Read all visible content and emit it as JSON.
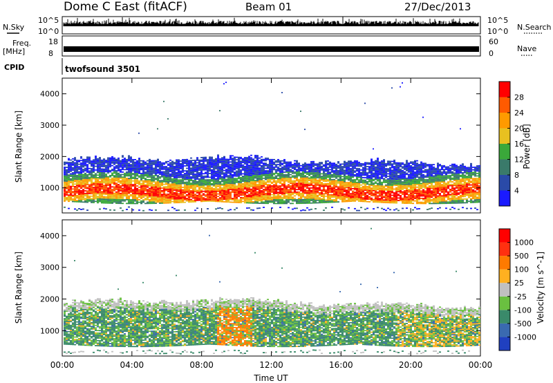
{
  "header": {
    "title": "Dome C East (fitACF)",
    "beam": "Beam 01",
    "date": "27/Dec/2013"
  },
  "params": {
    "nsky_label": "N.Sky",
    "nsearch_label": "N.Search",
    "nsky_top": "10^5",
    "nsky_bottom": "10^0",
    "nsearch_top": "10^5",
    "nsearch_bottom": "10^0",
    "freq_label_1": "Freq.",
    "freq_label_2": "[MHz]",
    "freq_top": "18",
    "freq_bottom": "8",
    "nave_label": "Nave",
    "nave_top": "60",
    "nave_bottom": "0",
    "cpid_label": "CPID",
    "cpid_value": "twofsound 3501"
  },
  "colors": {
    "power": [
      "#1a1aff",
      "#2a4aa8",
      "#3a7a6a",
      "#3aa83a",
      "#e8c020",
      "#ff9a00",
      "#ff5a00",
      "#ff0000"
    ],
    "velocity": [
      "#2040c0",
      "#3a6ab0",
      "#3a8a6a",
      "#6ac040",
      "#c0c0c0",
      "#ffb020",
      "#ff7a00",
      "#ff3010",
      "#ff0000"
    ]
  },
  "chart_data": [
    {
      "type": "heatmap",
      "quantity": "power",
      "ylabel": "Slant Range [km]",
      "ylim": [
        200,
        4500
      ],
      "xlim": [
        "00:00",
        "24:00"
      ],
      "yticks": [
        "1000",
        "2000",
        "3000",
        "4000"
      ],
      "colorbar_label": "Power [dB]",
      "colorbar_ticks": [
        "4",
        "8",
        "12",
        "16",
        "20",
        "24",
        "28"
      ],
      "colorbar_range": [
        0,
        32
      ],
      "main_echo_band_km": [
        500,
        1900
      ],
      "peak_power_range_km": [
        600,
        1100
      ],
      "ground_scatter_range_km": [
        300,
        400
      ]
    },
    {
      "type": "heatmap",
      "quantity": "velocity",
      "ylabel": "Slant Range [km]",
      "xlabel": "Time UT",
      "ylim": [
        200,
        4500
      ],
      "xlim": [
        "00:00",
        "24:00"
      ],
      "yticks": [
        "1000",
        "2000",
        "3000",
        "4000"
      ],
      "xticks": [
        "00:00",
        "04:00",
        "08:00",
        "12:00",
        "16:00",
        "20:00",
        "00:00"
      ],
      "colorbar_label": "Velocity [m s^-1]",
      "colorbar_ticks": [
        "1000",
        "500",
        "100",
        "25",
        "-25",
        "-100",
        "-500",
        "-1000"
      ],
      "main_echo_band_km": [
        500,
        1900
      ]
    }
  ]
}
